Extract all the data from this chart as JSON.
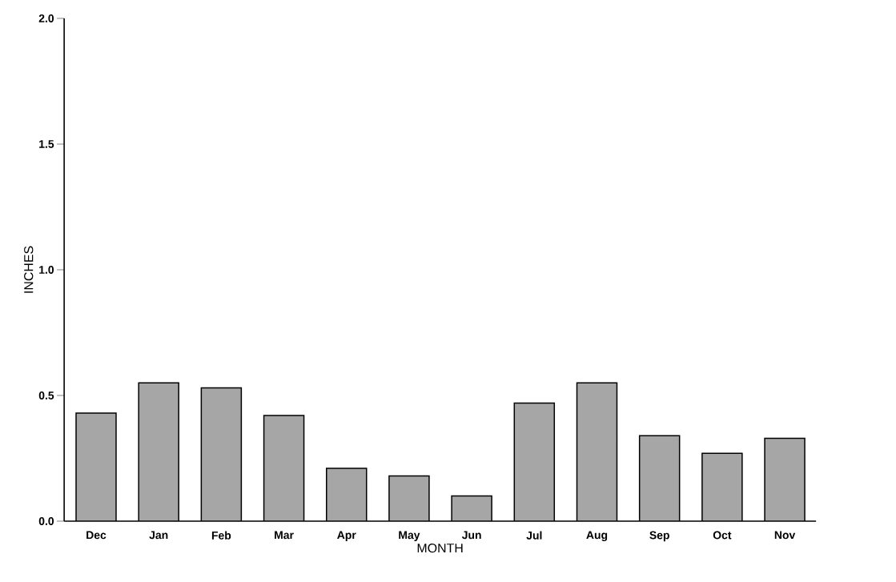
{
  "chart_data": {
    "type": "bar",
    "xlabel": "MONTH",
    "ylabel": "INCHES",
    "categories": [
      "Dec",
      "Jan",
      "Feb",
      "Mar",
      "Apr",
      "May",
      "Jun",
      "Jul",
      "Aug",
      "Sep",
      "Oct",
      "Nov"
    ],
    "values": [
      0.43,
      0.55,
      0.53,
      0.42,
      0.21,
      0.18,
      0.1,
      0.47,
      0.55,
      0.34,
      0.27,
      0.33
    ],
    "color": "#a6a6a6",
    "ylim": [
      0,
      2.0
    ],
    "yticks": [
      {
        "value": 0,
        "label": "0.0"
      },
      {
        "value": 0.5,
        "label": "0.5"
      },
      {
        "value": 1.0,
        "label": "1.0"
      },
      {
        "value": 1.5,
        "label": "1.5"
      },
      {
        "value": 2.0,
        "label": "2.0"
      }
    ],
    "grid": false
  }
}
